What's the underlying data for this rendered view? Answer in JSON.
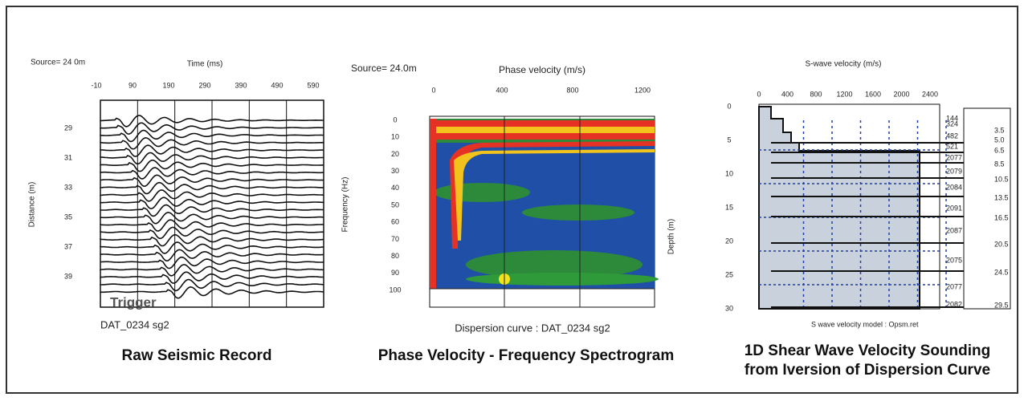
{
  "panels": [
    {
      "source": "Source= 24 0m",
      "axis_title": "Time (ms)",
      "x_ticks": [
        "-10",
        "90",
        "190",
        "290",
        "390",
        "490",
        "590"
      ],
      "y_label": "Distance (m)",
      "y_ticks": [
        "29",
        "31",
        "33",
        "35",
        "37",
        "39"
      ],
      "annotation": "Trigger",
      "file": "DAT_0234 sg2",
      "caption": "Raw Seismic Record"
    },
    {
      "source": "Source= 24.0m",
      "axis_title": "Phase velocity (m/s)",
      "x_ticks": [
        "0",
        "400",
        "800",
        "1200"
      ],
      "y_label": "Frequency (Hz)",
      "y_ticks": [
        "0",
        "10",
        "20",
        "30",
        "40",
        "50",
        "60",
        "70",
        "80",
        "90",
        "100"
      ],
      "right_label": "Depth (m)",
      "file": "Dispersion curve : DAT_0234 sg2",
      "caption": "Phase Velocity - Frequency Spectrogram"
    },
    {
      "axis_title": "S-wave velocity (m/s)",
      "x_ticks": [
        "0",
        "400",
        "800",
        "1200",
        "1600",
        "2000",
        "2400"
      ],
      "y_ticks": [
        "0",
        "5",
        "10",
        "15",
        "20",
        "25",
        "30"
      ],
      "layer_velocities": [
        "144",
        "324",
        "482",
        "521",
        "2077",
        "2079",
        "2084",
        "2091",
        "2087",
        "2075",
        "2077",
        "2082"
      ],
      "layer_depths": [
        "3.5",
        "5.0",
        "6.5",
        "8.5",
        "10.5",
        "13.5",
        "16.5",
        "20.5",
        "24.5",
        "29.5"
      ],
      "model_note": "S wave velocity model : Opsm.ret",
      "caption": [
        "1D Shear Wave Velocity Sounding",
        "from Iversion of Dispersion Curve"
      ]
    }
  ]
}
